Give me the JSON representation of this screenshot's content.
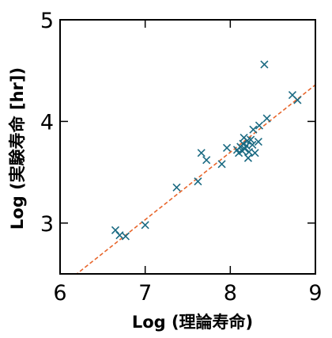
{
  "chart_data": {
    "type": "scatter",
    "title": "",
    "xlabel": "Log (理論寿命)",
    "ylabel": "Log (実験寿命 [hr])",
    "xlim": [
      6,
      9
    ],
    "ylim": [
      2.5,
      5
    ],
    "xticks": [
      6,
      7,
      8,
      9
    ],
    "yticks": [
      3,
      4,
      5
    ],
    "grid": false,
    "marker": "x",
    "marker_color": "#1a6a82",
    "points": [
      {
        "x": 6.65,
        "y": 2.93
      },
      {
        "x": 6.7,
        "y": 2.88
      },
      {
        "x": 6.77,
        "y": 2.87
      },
      {
        "x": 7.0,
        "y": 2.98
      },
      {
        "x": 7.37,
        "y": 3.35
      },
      {
        "x": 7.62,
        "y": 3.41
      },
      {
        "x": 7.66,
        "y": 3.69
      },
      {
        "x": 7.72,
        "y": 3.62
      },
      {
        "x": 7.9,
        "y": 3.58
      },
      {
        "x": 7.96,
        "y": 3.74
      },
      {
        "x": 8.08,
        "y": 3.72
      },
      {
        "x": 8.1,
        "y": 3.69
      },
      {
        "x": 8.12,
        "y": 3.75
      },
      {
        "x": 8.14,
        "y": 3.71
      },
      {
        "x": 8.15,
        "y": 3.78
      },
      {
        "x": 8.16,
        "y": 3.84
      },
      {
        "x": 8.17,
        "y": 3.73
      },
      {
        "x": 8.19,
        "y": 3.76
      },
      {
        "x": 8.2,
        "y": 3.81
      },
      {
        "x": 8.21,
        "y": 3.64
      },
      {
        "x": 8.22,
        "y": 3.7
      },
      {
        "x": 8.24,
        "y": 3.82
      },
      {
        "x": 8.26,
        "y": 3.77
      },
      {
        "x": 8.27,
        "y": 3.92
      },
      {
        "x": 8.29,
        "y": 3.69
      },
      {
        "x": 8.33,
        "y": 3.8
      },
      {
        "x": 8.34,
        "y": 3.96
      },
      {
        "x": 8.4,
        "y": 4.56
      },
      {
        "x": 8.43,
        "y": 4.03
      },
      {
        "x": 8.73,
        "y": 4.26
      },
      {
        "x": 8.79,
        "y": 4.21
      }
    ],
    "fit_line": {
      "style": "dashed",
      "color": "#e8662c",
      "x": [
        6.0,
        9.0
      ],
      "y": [
        2.37,
        4.36
      ]
    }
  }
}
